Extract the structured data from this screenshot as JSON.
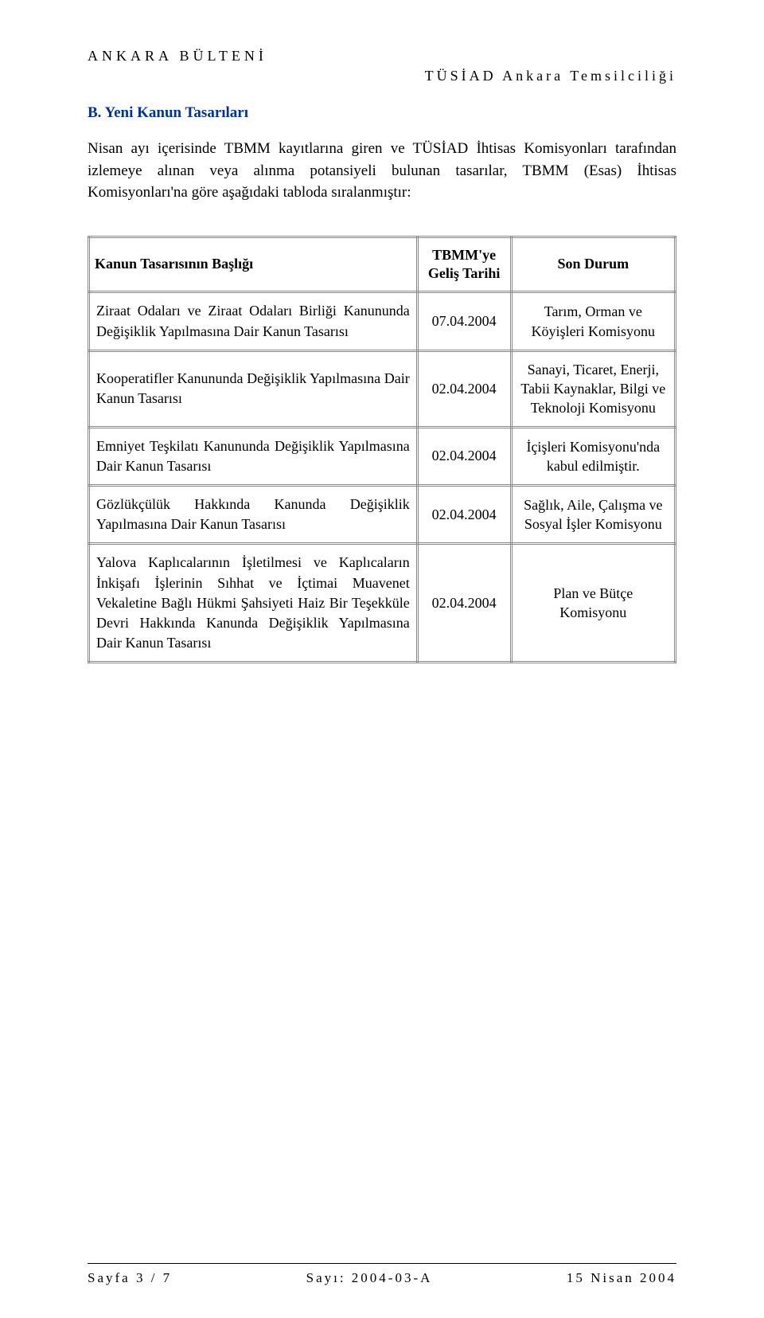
{
  "header": {
    "left": "ANKARA BÜLTENİ",
    "right": "TÜSİAD Ankara Temsilciliği"
  },
  "section": {
    "title": "B.    Yeni Kanun Tasarıları",
    "intro": "Nisan ayı içerisinde TBMM kayıtlarına giren ve TÜSİAD İhtisas Komisyonları tarafından izlemeye alınan veya alınma potansiyeli bulunan tasarılar, TBMM (Esas) İhtisas Komisyonları'na göre aşağıdaki tabloda sıralanmıştır:"
  },
  "table": {
    "headers": {
      "title": "Kanun Tasarısının Başlığı",
      "date": "TBMM'ye Geliş Tarihi",
      "status": "Son Durum"
    },
    "rows": [
      {
        "title": "Ziraat Odaları ve Ziraat Odaları Birliği Kanununda Değişiklik Yapılmasına Dair Kanun Tasarısı",
        "date": "07.04.2004",
        "status": "Tarım, Orman ve Köyişleri Komisyonu"
      },
      {
        "title": "Kooperatifler Kanununda Değişiklik Yapılmasına Dair Kanun Tasarısı",
        "date": "02.04.2004",
        "status": "Sanayi, Ticaret, Enerji, Tabii Kaynaklar, Bilgi ve Teknoloji Komisyonu"
      },
      {
        "title": "Emniyet Teşkilatı Kanununda Değişiklik Yapılmasına Dair Kanun Tasarısı",
        "date": "02.04.2004",
        "status": "İçişleri Komisyonu'nda kabul edilmiştir."
      },
      {
        "title": "Gözlükçülük Hakkında Kanunda Değişiklik Yapılmasına Dair Kanun Tasarısı",
        "date": "02.04.2004",
        "status": "Sağlık, Aile, Çalışma ve Sosyal İşler Komisyonu"
      },
      {
        "title": "Yalova Kaplıcalarının İşletilmesi ve Kaplıcaların İnkişafı İşlerinin Sıhhat ve İçtimai Muavenet Vekaletine Bağlı Hükmi Şahsiyeti Haiz Bir Teşekküle Devri Hakkında Kanunda Değişiklik Yapılmasına Dair Kanun Tasarısı",
        "date": "02.04.2004",
        "status": "Plan ve Bütçe Komisyonu"
      }
    ]
  },
  "footer": {
    "page": "Sayfa 3 / 7",
    "issue": "Sayı: 2004-03-A",
    "date": "15 Nisan 2004"
  }
}
